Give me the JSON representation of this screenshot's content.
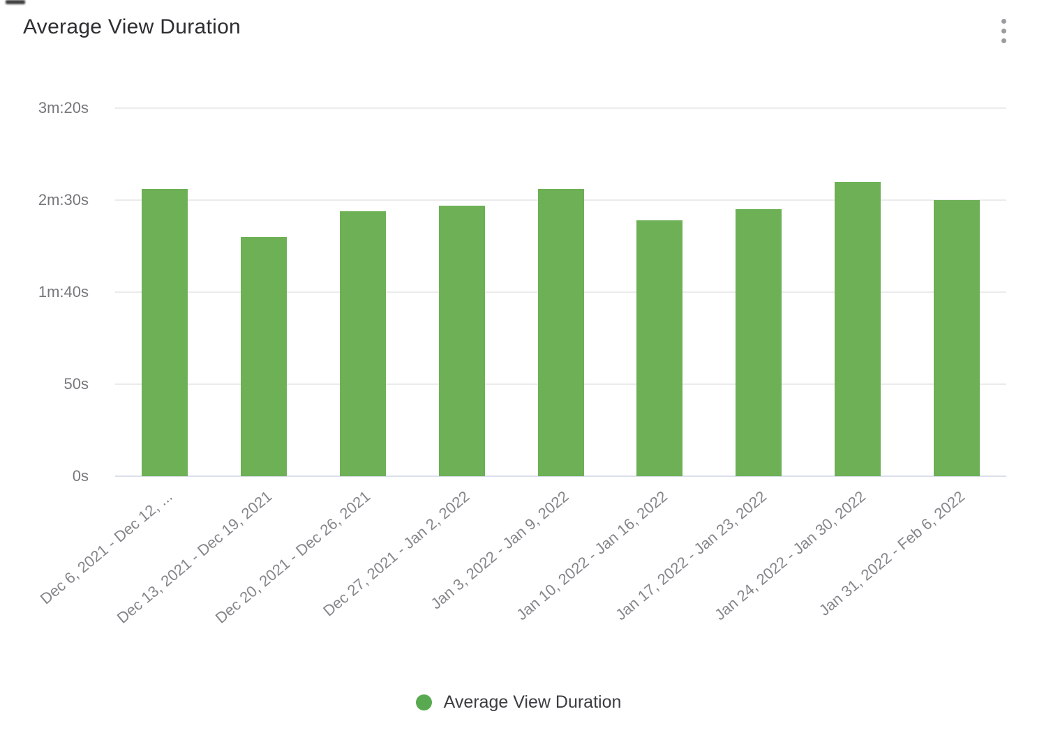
{
  "header": {
    "title": "Average View Duration",
    "menu_icon": "kebab-vertical"
  },
  "legend": {
    "label": "Average View Duration",
    "swatch_color": "#58a950"
  },
  "chart_data": {
    "type": "bar",
    "title": "Average View Duration",
    "categories": [
      "Dec 6, 2021 - Dec 12, ...",
      "Dec 13, 2021 - Dec 19, 2021",
      "Dec 20, 2021 - Dec 26, 2021",
      "Dec 27, 2021 - Jan 2, 2022",
      "Jan 3, 2022 - Jan 9, 2022",
      "Jan 10, 2022 - Jan 16, 2022",
      "Jan 17, 2022 - Jan 23, 2022",
      "Jan 24, 2022 - Jan 30, 2022",
      "Jan 31, 2022 - Feb 6, 2022"
    ],
    "series": [
      {
        "name": "Average View Duration",
        "unit": "seconds",
        "values": [
          156,
          130,
          144,
          147,
          156,
          139,
          145,
          160,
          150
        ]
      }
    ],
    "xlabel": "",
    "ylabel": "",
    "ylim_seconds": [
      0,
      200
    ],
    "yticks": [
      {
        "seconds": 200,
        "label": "3m:20s"
      },
      {
        "seconds": 150,
        "label": "2m:30s"
      },
      {
        "seconds": 100,
        "label": "1m:40s"
      },
      {
        "seconds": 50,
        "label": "50s"
      },
      {
        "seconds": 0,
        "label": "0s"
      }
    ],
    "grid": "horizontal",
    "legend_position": "bottom",
    "bar_color": "#6db055",
    "gridline_color": "#ebebeb",
    "axis_line_color": "#d9dfec"
  }
}
